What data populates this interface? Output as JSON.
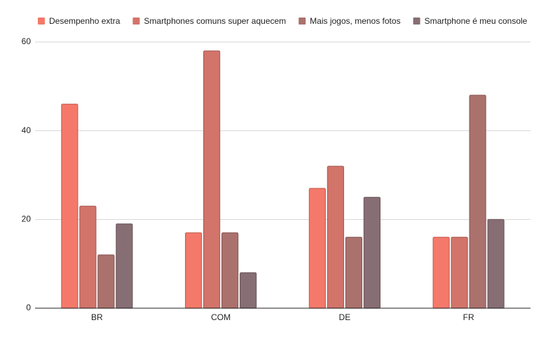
{
  "chart_data": {
    "type": "bar",
    "title": "",
    "xlabel": "",
    "ylabel": "",
    "ylim": [
      0,
      60
    ],
    "yticks": [
      0,
      20,
      40,
      60
    ],
    "grid": true,
    "legend_position": "top-left",
    "categories": [
      "BR",
      "COM",
      "DE",
      "FR"
    ],
    "series": [
      {
        "name": "Desempenho extra",
        "color": "#f4796a",
        "values": [
          46,
          17,
          27,
          16
        ]
      },
      {
        "name": "Smartphones comuns super aquecem",
        "color": "#d2746a",
        "values": [
          23,
          58,
          32,
          16
        ]
      },
      {
        "name": "Mais jogos, menos fotos",
        "color": "#ab716d",
        "values": [
          12,
          17,
          16,
          48
        ]
      },
      {
        "name": "Smartphone é meu console",
        "color": "#876e74",
        "values": [
          19,
          8,
          25,
          20
        ]
      }
    ]
  }
}
